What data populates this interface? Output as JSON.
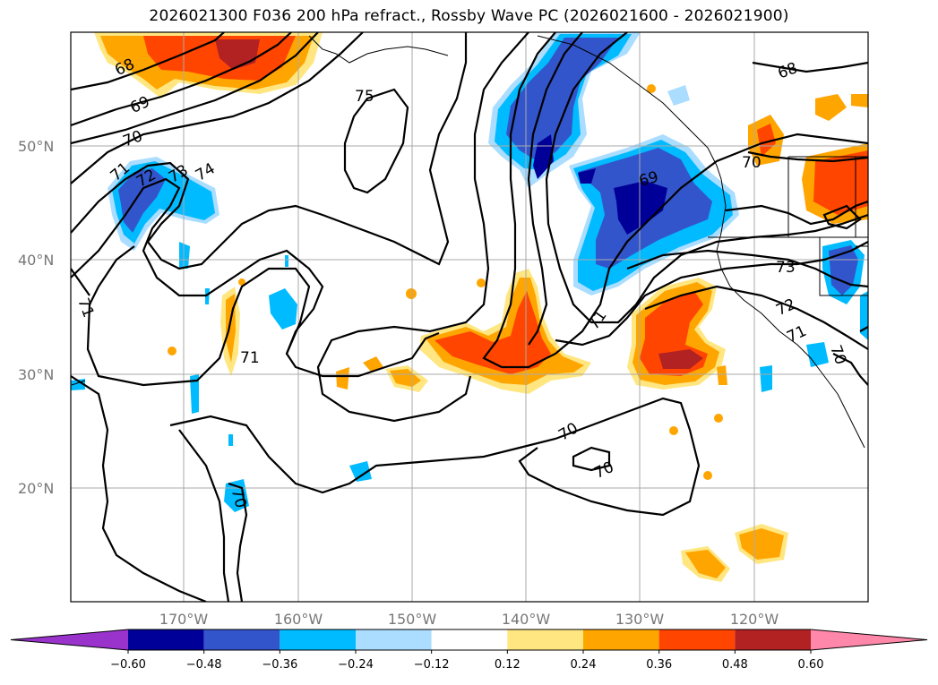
{
  "title": "2026021300 F036 200 hPa refract., Rossby Wave PC (2026021600 - 2026021900)",
  "map": {
    "lat_labels": [
      "50°N",
      "40°N",
      "30°N",
      "20°N"
    ],
    "lon_labels": [
      "170°W",
      "160°W",
      "150°W",
      "140°W",
      "130°W",
      "120°W"
    ],
    "contour_labels": [
      "68",
      "69",
      "70",
      "71",
      "72",
      "73",
      "74",
      "75",
      "71",
      "71",
      "70",
      "70",
      "69",
      "71",
      "73",
      "72",
      "71",
      "70",
      "68",
      "70",
      "69"
    ]
  },
  "colorbar": {
    "ticks": [
      "−0.60",
      "−0.48",
      "−0.36",
      "−0.24",
      "−0.12",
      "0.12",
      "0.24",
      "0.36",
      "0.48",
      "0.60"
    ],
    "colors": [
      "#9933cc",
      "#000099",
      "#3355cc",
      "#00bbff",
      "#aaddff",
      "#ffffff",
      "#ffe680",
      "#ffa500",
      "#ff4500",
      "#b22222",
      "#ff88aa"
    ]
  }
}
